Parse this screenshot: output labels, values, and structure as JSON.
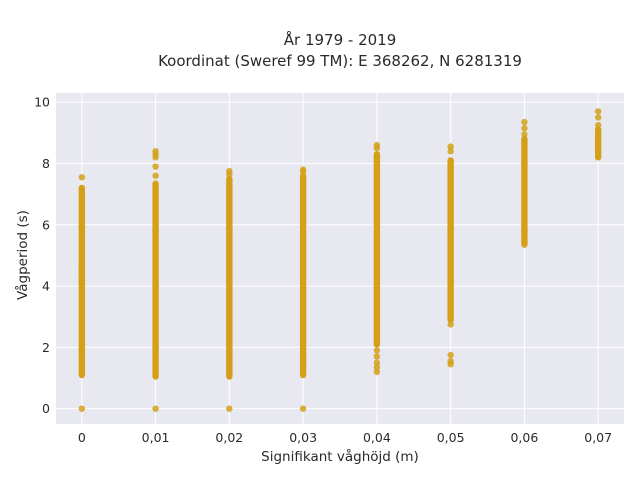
{
  "chart_data": {
    "type": "scatter",
    "title_line1": "År 1979 - 2019",
    "title_line2": "Koordinat (Sweref 99 TM): E 368262, N 6281319",
    "xlabel": "Signifikant våghöjd (m)",
    "ylabel": "Vågperiod (s)",
    "xlim": [
      -0.0035,
      0.0735
    ],
    "ylim": [
      -0.5,
      10.3
    ],
    "x_ticks": [
      0,
      0.01,
      0.02,
      0.03,
      0.04,
      0.05,
      0.06,
      0.07
    ],
    "x_tick_labels": [
      "0",
      "0,01",
      "0,02",
      "0,03",
      "0,04",
      "0,05",
      "0,06",
      "0,07"
    ],
    "y_ticks": [
      0,
      2,
      4,
      6,
      8,
      10
    ],
    "y_tick_labels": [
      "0",
      "2",
      "4",
      "6",
      "8",
      "10"
    ],
    "grid": true,
    "marker_color": "#D4A017",
    "plot_background": "#E8E8F0",
    "series": [
      {
        "ranges": [
          {
            "x": 0,
            "y_min": 1.1,
            "y_max": 7.2
          },
          {
            "x": 0.01,
            "y_min": 1.05,
            "y_max": 7.3
          },
          {
            "x": 0.02,
            "y_min": 1.05,
            "y_max": 7.5
          },
          {
            "x": 0.03,
            "y_min": 1.1,
            "y_max": 7.6
          },
          {
            "x": 0.04,
            "y_min": 2.1,
            "y_max": 8.3
          },
          {
            "x": 0.05,
            "y_min": 2.9,
            "y_max": 8.1
          },
          {
            "x": 0.06,
            "y_min": 5.4,
            "y_max": 8.8
          },
          {
            "x": 0.07,
            "y_min": 8.2,
            "y_max": 9.1
          }
        ],
        "points": [
          {
            "x": 0,
            "y": 0
          },
          {
            "x": 0,
            "y": 7.55
          },
          {
            "x": 0,
            "y": 4.5
          },
          {
            "x": 0,
            "y": 4.3
          },
          {
            "x": 0.01,
            "y": 0
          },
          {
            "x": 0.01,
            "y": 8.4
          },
          {
            "x": 0.01,
            "y": 8.3
          },
          {
            "x": 0.01,
            "y": 8.2
          },
          {
            "x": 0.01,
            "y": 7.9
          },
          {
            "x": 0.01,
            "y": 7.6
          },
          {
            "x": 0.01,
            "y": 7.35
          },
          {
            "x": 0.02,
            "y": 0
          },
          {
            "x": 0.02,
            "y": 7.75
          },
          {
            "x": 0.02,
            "y": 7.65
          },
          {
            "x": 0.03,
            "y": 0
          },
          {
            "x": 0.03,
            "y": 7.8
          },
          {
            "x": 0.03,
            "y": 7.75
          },
          {
            "x": 0.04,
            "y": 8.6
          },
          {
            "x": 0.04,
            "y": 8.5
          },
          {
            "x": 0.04,
            "y": 1.9
          },
          {
            "x": 0.04,
            "y": 1.7
          },
          {
            "x": 0.04,
            "y": 1.5
          },
          {
            "x": 0.04,
            "y": 1.35
          },
          {
            "x": 0.04,
            "y": 1.2
          },
          {
            "x": 0.05,
            "y": 8.55
          },
          {
            "x": 0.05,
            "y": 8.4
          },
          {
            "x": 0.05,
            "y": 1.75
          },
          {
            "x": 0.05,
            "y": 1.55
          },
          {
            "x": 0.05,
            "y": 1.45
          },
          {
            "x": 0.05,
            "y": 2.75
          },
          {
            "x": 0.06,
            "y": 9.35
          },
          {
            "x": 0.06,
            "y": 9.15
          },
          {
            "x": 0.06,
            "y": 8.95
          },
          {
            "x": 0.06,
            "y": 5.35
          },
          {
            "x": 0.07,
            "y": 9.7
          },
          {
            "x": 0.07,
            "y": 9.5
          },
          {
            "x": 0.07,
            "y": 9.25
          }
        ]
      }
    ]
  }
}
